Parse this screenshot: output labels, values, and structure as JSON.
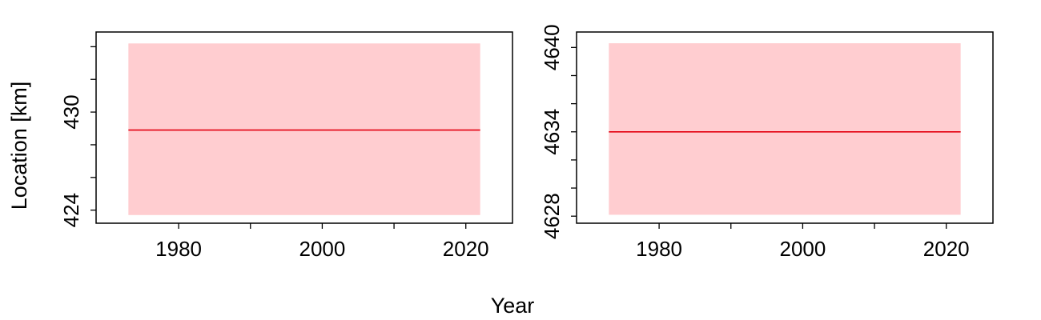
{
  "xlabel": "Year",
  "ylabel": "Location [km]",
  "colors": {
    "line": "#e3000f",
    "band": "#ffcdd0",
    "frame": "#000000"
  },
  "chart_data": [
    {
      "type": "line",
      "xlim": [
        1968.5,
        2026.5
      ],
      "ylim": [
        423.2,
        434.9
      ],
      "x_ticks": [
        1980,
        1990,
        2000,
        2010,
        2020
      ],
      "x_tick_labels": [
        "1980",
        "",
        "2000",
        "",
        "2020"
      ],
      "y_ticks": [
        424,
        426,
        428,
        430,
        432,
        434
      ],
      "y_tick_labels": [
        "424",
        "",
        "",
        "430",
        "",
        ""
      ],
      "band": {
        "x": [
          1973,
          2022
        ],
        "y": [
          423.7,
          434.2
        ]
      },
      "series": [
        {
          "x": [
            1973,
            2022
          ],
          "y": [
            428.9,
            428.9
          ]
        }
      ],
      "grid": false
    },
    {
      "type": "line",
      "xlim": [
        1968.5,
        2026.5
      ],
      "ylim": [
        4627.5,
        4641.1
      ],
      "x_ticks": [
        1980,
        1990,
        2000,
        2010,
        2020
      ],
      "x_tick_labels": [
        "1980",
        "",
        "2000",
        "",
        "2020"
      ],
      "y_ticks": [
        4628,
        4630,
        4632,
        4634,
        4636,
        4638,
        4640
      ],
      "y_tick_labels": [
        "4628",
        "",
        "",
        "4634",
        "",
        "",
        "4640"
      ],
      "band": {
        "x": [
          1973,
          2022
        ],
        "y": [
          4628.1,
          4640.3
        ]
      },
      "series": [
        {
          "x": [
            1973,
            2022
          ],
          "y": [
            4634.0,
            4634.0
          ]
        }
      ],
      "grid": false
    }
  ]
}
